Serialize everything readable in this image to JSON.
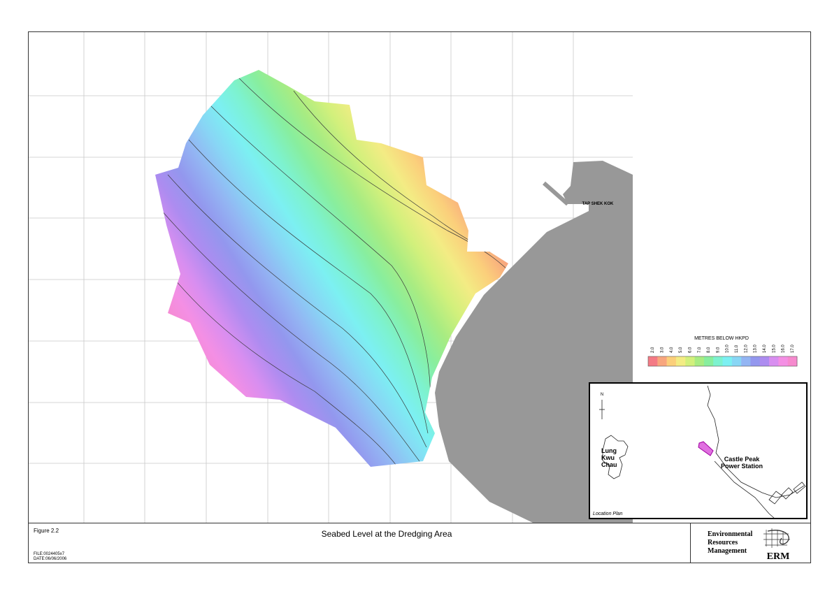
{
  "figure": {
    "number": "Figure 2.2",
    "title": "Seabed Level at the Dredging Area",
    "file": "FILE:0024405x7",
    "date": "DATE:06/06/2006"
  },
  "company": {
    "lines": [
      "Environmental",
      "Resources",
      "Management"
    ],
    "logo": "ERM"
  },
  "map": {
    "place_label": "TAP SHEK KOK"
  },
  "legend": {
    "title": "METRES BELOW HKPD",
    "items": [
      {
        "label": "2.0",
        "color": "#f47a85"
      },
      {
        "label": "3.0",
        "color": "#f8a67e"
      },
      {
        "label": "4.0",
        "color": "#fbcf7b"
      },
      {
        "label": "5.0",
        "color": "#f3ec84"
      },
      {
        "label": "6.0",
        "color": "#d2f07c"
      },
      {
        "label": "7.0",
        "color": "#a8ec82"
      },
      {
        "label": "8.0",
        "color": "#88ee9e"
      },
      {
        "label": "9.0",
        "color": "#7df2cf"
      },
      {
        "label": "10.0",
        "color": "#7cf0f2"
      },
      {
        "label": "11.0",
        "color": "#88d6f5"
      },
      {
        "label": "12.0",
        "color": "#93b5f3"
      },
      {
        "label": "13.0",
        "color": "#9397ee"
      },
      {
        "label": "14.0",
        "color": "#ad8cf0"
      },
      {
        "label": "15.0",
        "color": "#d88ef0"
      },
      {
        "label": "16.0",
        "color": "#f48fe4"
      },
      {
        "label": "17.0",
        "color": "#f68ace"
      }
    ]
  },
  "inset": {
    "caption": "Location Plan",
    "north": "N",
    "island": [
      "Lung",
      "Kwu",
      "Chau"
    ],
    "station": [
      "Castle Peak",
      "Power Station"
    ]
  }
}
